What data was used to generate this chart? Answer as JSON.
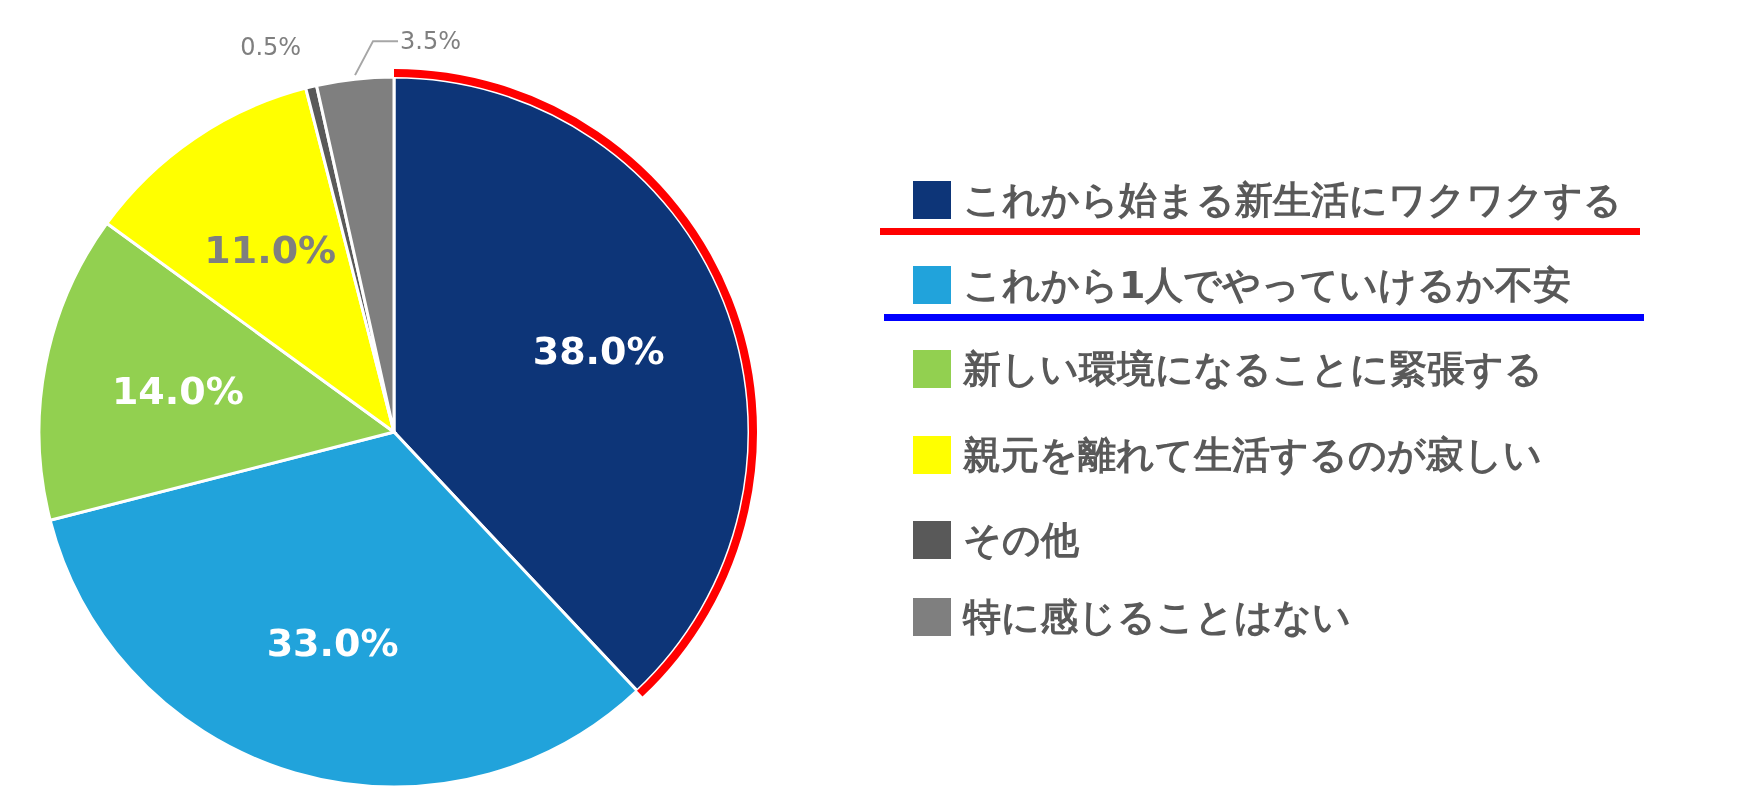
{
  "chart_data": {
    "type": "pie",
    "categories": [
      "これから始まる新生活にワクワクする",
      "これから1人でやっていけるか不安",
      "新しい環境になることに緊張する",
      "親元を離れて生活するのが寂しい",
      "その他",
      "特に感じることはない"
    ],
    "values": [
      38,
      33,
      14,
      11,
      0.5,
      3.5
    ],
    "colors": [
      "#0d3578",
      "#21a3db",
      "#92d050",
      "#ffff00",
      "#595959",
      "#7f7f7f"
    ],
    "value_labels": [
      "38.0%",
      "33.0%",
      "14.0%",
      "11.0%",
      "0.5%",
      "3.5%"
    ],
    "legend": "right"
  }
}
